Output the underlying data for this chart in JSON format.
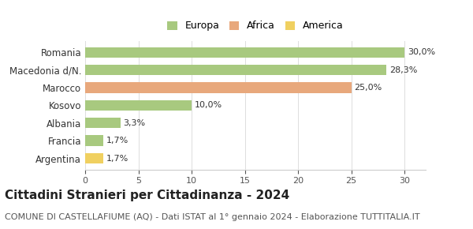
{
  "categories": [
    "Romania",
    "Macedonia d/N.",
    "Marocco",
    "Kosovo",
    "Albania",
    "Francia",
    "Argentina"
  ],
  "values": [
    30.0,
    28.3,
    25.0,
    10.0,
    3.3,
    1.7,
    1.7
  ],
  "bar_colors": [
    "#a8c97f",
    "#a8c97f",
    "#e8a87c",
    "#a8c97f",
    "#a8c97f",
    "#a8c97f",
    "#f0d060"
  ],
  "labels": [
    "30,0%",
    "28,3%",
    "25,0%",
    "10,0%",
    "3,3%",
    "1,7%",
    "1,7%"
  ],
  "legend": [
    {
      "label": "Europa",
      "color": "#a8c97f"
    },
    {
      "label": "Africa",
      "color": "#e8a87c"
    },
    {
      "label": "America",
      "color": "#f0d060"
    }
  ],
  "xlim": [
    0,
    32
  ],
  "xticks": [
    0,
    5,
    10,
    15,
    20,
    25,
    30
  ],
  "title": "Cittadini Stranieri per Cittadinanza - 2024",
  "subtitle": "COMUNE DI CASTELLAFIUME (AQ) - Dati ISTAT al 1° gennaio 2024 - Elaborazione TUTTITALIA.IT",
  "title_fontsize": 11,
  "subtitle_fontsize": 8,
  "background_color": "#ffffff"
}
